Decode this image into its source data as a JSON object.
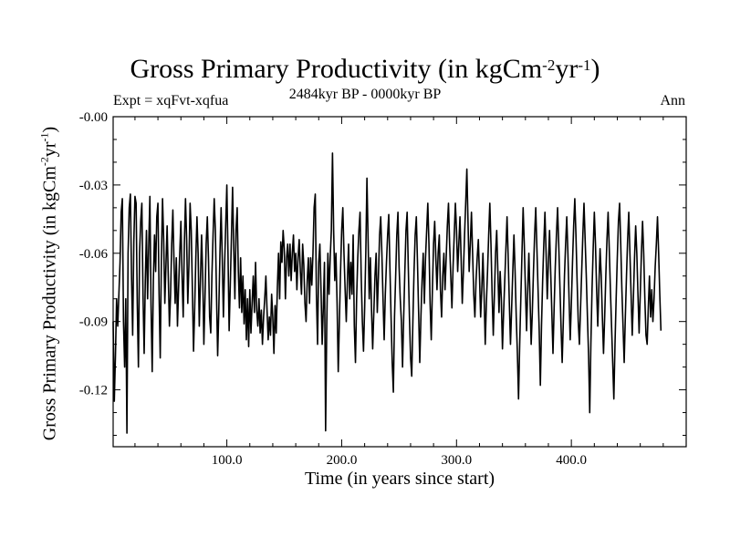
{
  "chart_data": {
    "type": "line",
    "title": "Gross Primary Productivity (in kgCm",
    "title_exp1": "-2",
    "title_mid": "yr",
    "title_exp2": "-1",
    "title_end": ")",
    "subtitle": "2484kyr BP - 0000kyr BP",
    "expt_label": "Expt = xqFvt-xqfua",
    "season_label": "Ann",
    "xlabel": "Time (in years since start)",
    "ylabel": "Gross Primary Productivity (in kgCm",
    "ylabel_exp1": "-2",
    "ylabel_mid": "yr",
    "ylabel_exp2": "-1",
    "ylabel_end": ")",
    "xlim": [
      1,
      500
    ],
    "ylim": [
      -0.145,
      0.0
    ],
    "xticks": [
      100,
      200,
      300,
      400
    ],
    "xtick_labels": [
      "100.0",
      "200.0",
      "300.0",
      "400.0"
    ],
    "yticks": [
      0.0,
      -0.03,
      -0.06,
      -0.09,
      -0.12
    ],
    "ytick_labels": [
      "-0.00",
      "-0.03",
      "-0.06",
      "-0.09",
      "-0.12"
    ],
    "grid": false,
    "series": [
      {
        "name": "Gross Primary Productivity",
        "x_start": 1,
        "x_step": 1,
        "values": [
          -0.09,
          -0.125,
          -0.105,
          -0.08,
          -0.092,
          -0.078,
          -0.064,
          -0.042,
          -0.036,
          -0.09,
          -0.11,
          -0.08,
          -0.139,
          -0.06,
          -0.04,
          -0.034,
          -0.07,
          -0.096,
          -0.055,
          -0.035,
          -0.038,
          -0.082,
          -0.11,
          -0.06,
          -0.046,
          -0.038,
          -0.078,
          -0.104,
          -0.072,
          -0.05,
          -0.08,
          -0.056,
          -0.035,
          -0.083,
          -0.112,
          -0.072,
          -0.052,
          -0.068,
          -0.044,
          -0.038,
          -0.078,
          -0.106,
          -0.063,
          -0.036,
          -0.054,
          -0.082,
          -0.065,
          -0.048,
          -0.07,
          -0.092,
          -0.078,
          -0.056,
          -0.041,
          -0.064,
          -0.082,
          -0.062,
          -0.092,
          -0.075,
          -0.06,
          -0.046,
          -0.07,
          -0.088,
          -0.056,
          -0.036,
          -0.054,
          -0.082,
          -0.065,
          -0.038,
          -0.05,
          -0.076,
          -0.103,
          -0.084,
          -0.062,
          -0.044,
          -0.06,
          -0.092,
          -0.072,
          -0.052,
          -0.07,
          -0.1,
          -0.079,
          -0.056,
          -0.044,
          -0.062,
          -0.088,
          -0.095,
          -0.07,
          -0.052,
          -0.036,
          -0.05,
          -0.078,
          -0.105,
          -0.085,
          -0.06,
          -0.04,
          -0.062,
          -0.088,
          -0.066,
          -0.048,
          -0.03,
          -0.06,
          -0.094,
          -0.074,
          -0.053,
          -0.031,
          -0.057,
          -0.08,
          -0.05,
          -0.04,
          -0.068,
          -0.084,
          -0.062,
          -0.086,
          -0.07,
          -0.091,
          -0.076,
          -0.098,
          -0.08,
          -0.101,
          -0.076,
          -0.095,
          -0.082,
          -0.07,
          -0.086,
          -0.064,
          -0.085,
          -0.092,
          -0.08,
          -0.095,
          -0.085,
          -0.1,
          -0.088,
          -0.08,
          -0.07,
          -0.085,
          -0.098,
          -0.088,
          -0.096,
          -0.078,
          -0.088,
          -0.104,
          -0.083,
          -0.095,
          -0.075,
          -0.06,
          -0.08,
          -0.055,
          -0.064,
          -0.05,
          -0.058,
          -0.08,
          -0.062,
          -0.056,
          -0.07,
          -0.056,
          -0.072,
          -0.06,
          -0.052,
          -0.068,
          -0.06,
          -0.076,
          -0.062,
          -0.054,
          -0.068,
          -0.078,
          -0.056,
          -0.065,
          -0.082,
          -0.09,
          -0.072,
          -0.062,
          -0.082,
          -0.062,
          -0.074,
          -0.06,
          -0.04,
          -0.034,
          -0.078,
          -0.1,
          -0.064,
          -0.056,
          -0.076,
          -0.1,
          -0.084,
          -0.064,
          -0.138,
          -0.092,
          -0.06,
          -0.078,
          -0.062,
          -0.05,
          -0.016,
          -0.05,
          -0.072,
          -0.06,
          -0.082,
          -0.112,
          -0.09,
          -0.068,
          -0.05,
          -0.04,
          -0.06,
          -0.076,
          -0.09,
          -0.072,
          -0.056,
          -0.08,
          -0.064,
          -0.078,
          -0.052,
          -0.092,
          -0.108,
          -0.08,
          -0.062,
          -0.05,
          -0.042,
          -0.07,
          -0.09,
          -0.103,
          -0.084,
          -0.06,
          -0.027,
          -0.054,
          -0.08,
          -0.062,
          -0.085,
          -0.102,
          -0.086,
          -0.07,
          -0.06,
          -0.086,
          -0.07,
          -0.052,
          -0.044,
          -0.06,
          -0.08,
          -0.098,
          -0.078,
          -0.064,
          -0.052,
          -0.043,
          -0.066,
          -0.088,
          -0.108,
          -0.121,
          -0.088,
          -0.07,
          -0.052,
          -0.042,
          -0.066,
          -0.08,
          -0.09,
          -0.11,
          -0.088,
          -0.068,
          -0.05,
          -0.042,
          -0.066,
          -0.088,
          -0.106,
          -0.114,
          -0.09,
          -0.068,
          -0.052,
          -0.044,
          -0.064,
          -0.086,
          -0.108,
          -0.088,
          -0.072,
          -0.06,
          -0.082,
          -0.062,
          -0.05,
          -0.038,
          -0.056,
          -0.082,
          -0.098,
          -0.076,
          -0.056,
          -0.046,
          -0.062,
          -0.076,
          -0.06,
          -0.052,
          -0.076,
          -0.088,
          -0.07,
          -0.06,
          -0.076,
          -0.062,
          -0.048,
          -0.038,
          -0.056,
          -0.07,
          -0.084,
          -0.066,
          -0.052,
          -0.038,
          -0.05,
          -0.068,
          -0.056,
          -0.044,
          -0.062,
          -0.082,
          -0.068,
          -0.052,
          -0.038,
          -0.023,
          -0.046,
          -0.068,
          -0.056,
          -0.042,
          -0.06,
          -0.078,
          -0.088,
          -0.072,
          -0.062,
          -0.054,
          -0.07,
          -0.088,
          -0.076,
          -0.06,
          -0.078,
          -0.1,
          -0.082,
          -0.068,
          -0.052,
          -0.038,
          -0.056,
          -0.078,
          -0.096,
          -0.078,
          -0.06,
          -0.05,
          -0.068,
          -0.086,
          -0.068,
          -0.08,
          -0.102,
          -0.086,
          -0.072,
          -0.058,
          -0.044,
          -0.062,
          -0.082,
          -0.1,
          -0.084,
          -0.068,
          -0.052,
          -0.068,
          -0.088,
          -0.104,
          -0.124,
          -0.1,
          -0.08,
          -0.06,
          -0.04,
          -0.056,
          -0.076,
          -0.094,
          -0.076,
          -0.06,
          -0.08,
          -0.1,
          -0.086,
          -0.068,
          -0.052,
          -0.04,
          -0.058,
          -0.076,
          -0.094,
          -0.118,
          -0.092,
          -0.072,
          -0.056,
          -0.042,
          -0.06,
          -0.08,
          -0.064,
          -0.05,
          -0.068,
          -0.086,
          -0.104,
          -0.084,
          -0.066,
          -0.052,
          -0.04,
          -0.056,
          -0.074,
          -0.092,
          -0.108,
          -0.09,
          -0.07,
          -0.056,
          -0.044,
          -0.06,
          -0.08,
          -0.098,
          -0.082,
          -0.064,
          -0.048,
          -0.036,
          -0.052,
          -0.072,
          -0.09,
          -0.1,
          -0.084,
          -0.068,
          -0.052,
          -0.038,
          -0.054,
          -0.07,
          -0.088,
          -0.105,
          -0.13,
          -0.1,
          -0.076,
          -0.058,
          -0.042,
          -0.056,
          -0.076,
          -0.092,
          -0.074,
          -0.058,
          -0.07,
          -0.088,
          -0.104,
          -0.088,
          -0.07,
          -0.054,
          -0.042,
          -0.058,
          -0.076,
          -0.092,
          -0.108,
          -0.124,
          -0.1,
          -0.08,
          -0.062,
          -0.046,
          -0.038,
          -0.056,
          -0.076,
          -0.092,
          -0.108,
          -0.088,
          -0.07,
          -0.054,
          -0.042,
          -0.06,
          -0.078,
          -0.096,
          -0.08,
          -0.062,
          -0.048,
          -0.06,
          -0.078,
          -0.095,
          -0.078,
          -0.06,
          -0.046,
          -0.06,
          -0.08,
          -0.096,
          -0.1,
          -0.084,
          -0.07,
          -0.088,
          -0.076,
          -0.09,
          -0.08,
          -0.066,
          -0.056,
          -0.044,
          -0.06,
          -0.078,
          -0.094
        ]
      }
    ]
  }
}
